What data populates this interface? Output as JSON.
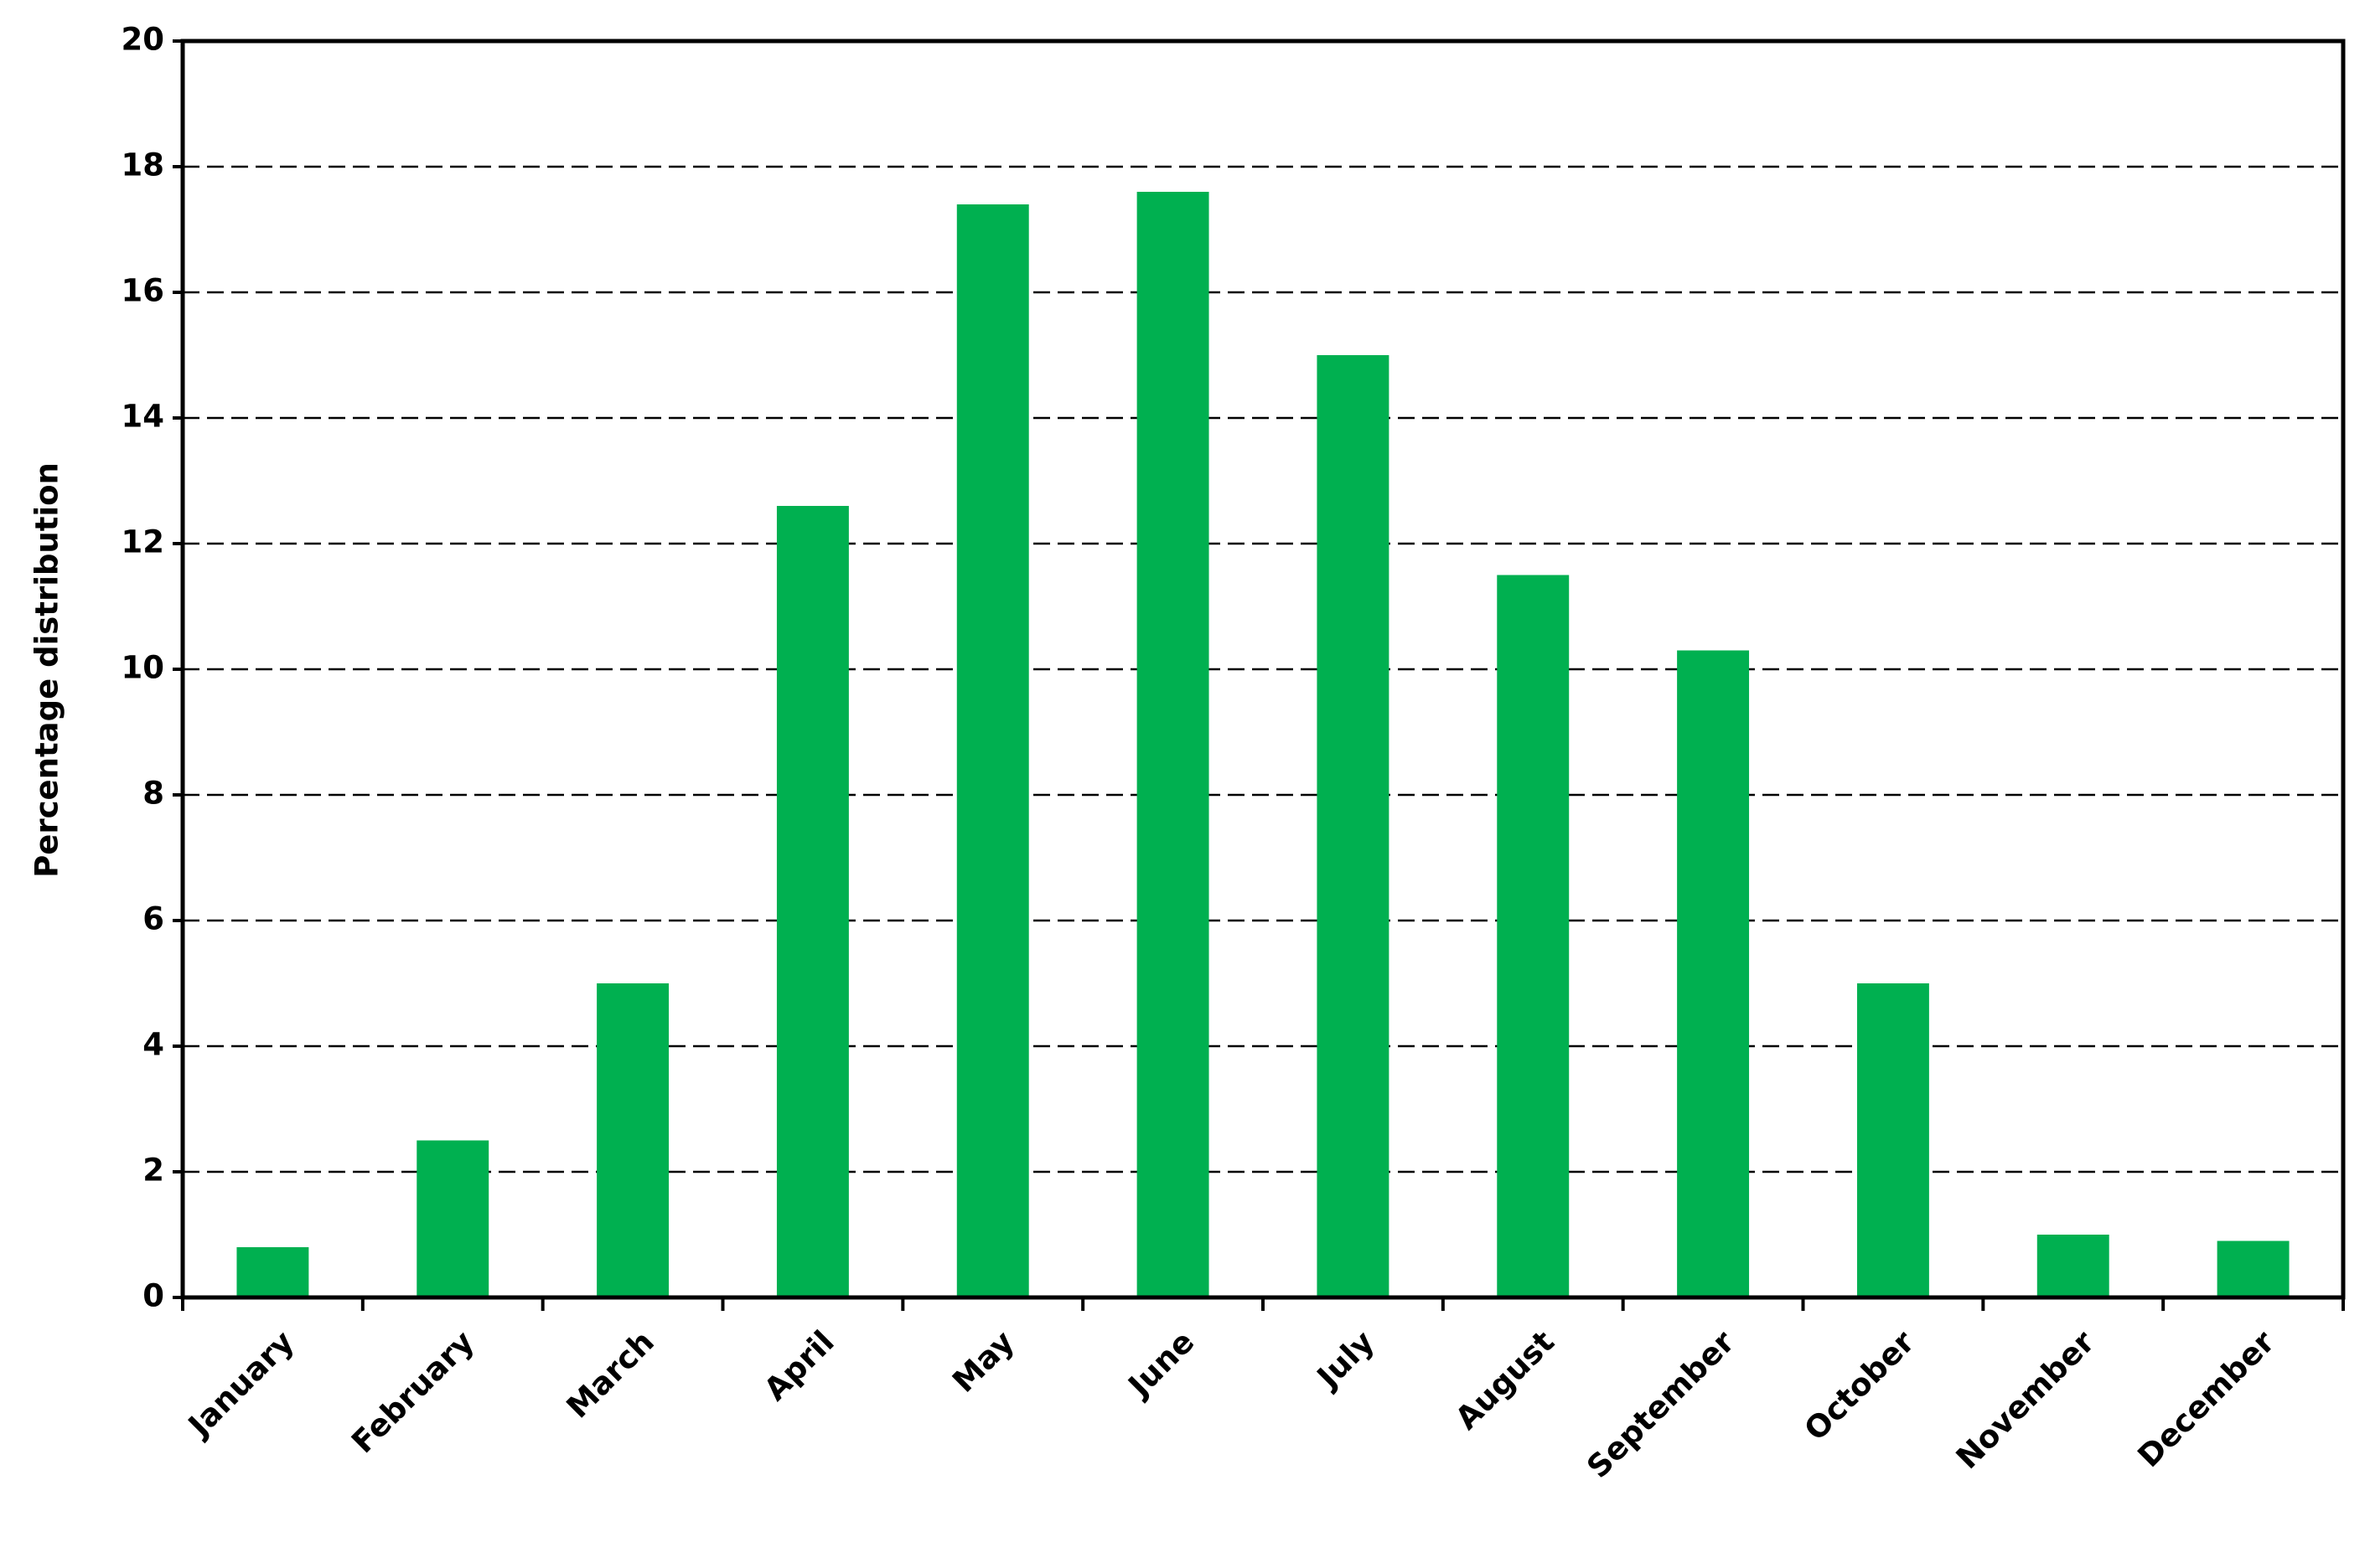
{
  "chart_data": {
    "type": "bar",
    "y_axis_label": "Percentage distribution",
    "categories": [
      "January",
      "February",
      "March",
      "April",
      "May",
      "June",
      "July",
      "August",
      "September",
      "October",
      "November",
      "December"
    ],
    "values": [
      0.8,
      2.5,
      5.0,
      12.6,
      17.4,
      17.6,
      15.0,
      11.5,
      10.3,
      5.0,
      1.0,
      0.9
    ],
    "color": "#00b050",
    "ylim": [
      0,
      20
    ],
    "yticks": [
      0,
      2,
      4,
      6,
      8,
      10,
      12,
      14,
      16,
      18,
      20
    ],
    "grid": true
  }
}
